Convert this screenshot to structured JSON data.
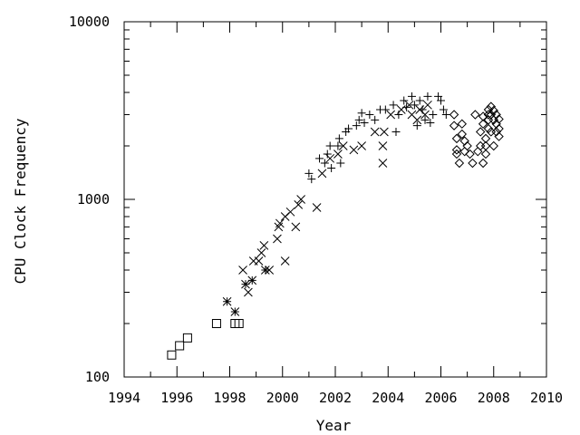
{
  "chart_data": {
    "type": "scatter",
    "title": "",
    "xlabel": "Year",
    "ylabel": "CPU Clock Frequency",
    "xlim": [
      1994,
      2010
    ],
    "ylim": [
      100,
      10000
    ],
    "y_scale": "log",
    "grid": false,
    "legend": "none",
    "x_ticks": [
      "1994",
      "1996",
      "1998",
      "2000",
      "2002",
      "2004",
      "2006",
      "2008",
      "2010"
    ],
    "y_ticks": [
      {
        "value": 100,
        "label": "100"
      },
      {
        "value": 1000,
        "label": "1000"
      },
      {
        "value": 10000,
        "label": "10000"
      }
    ],
    "series": [
      {
        "marker": "square",
        "points": [
          [
            1995.8,
            133
          ],
          [
            1996.1,
            150
          ],
          [
            1996.4,
            166
          ],
          [
            1997.5,
            200
          ],
          [
            1998.2,
            200
          ],
          [
            1998.35,
            200
          ]
        ]
      },
      {
        "marker": "star",
        "points": [
          [
            1997.9,
            266
          ],
          [
            1998.2,
            233
          ],
          [
            1998.6,
            333
          ],
          [
            1998.85,
            350
          ],
          [
            1999.35,
            400
          ]
        ]
      },
      {
        "marker": "x",
        "points": [
          [
            1998.5,
            400
          ],
          [
            1998.7,
            300
          ],
          [
            1998.9,
            450
          ],
          [
            1999.1,
            450
          ],
          [
            1999.2,
            500
          ],
          [
            1999.3,
            550
          ],
          [
            1999.5,
            400
          ],
          [
            1999.8,
            600
          ],
          [
            1999.85,
            700
          ],
          [
            1999.9,
            733
          ],
          [
            2000.1,
            800
          ],
          [
            2000.1,
            450
          ],
          [
            2000.3,
            850
          ],
          [
            2000.5,
            700
          ],
          [
            2000.6,
            933
          ],
          [
            2000.7,
            1000
          ],
          [
            2001.3,
            900
          ],
          [
            2001.5,
            1400
          ],
          [
            2001.8,
            1700
          ],
          [
            2002.1,
            1800
          ],
          [
            2002.3,
            2000
          ],
          [
            2002.7,
            1900
          ],
          [
            2003.0,
            2000
          ],
          [
            2003.5,
            2400
          ],
          [
            2003.8,
            2000
          ],
          [
            2003.8,
            1600
          ],
          [
            2003.85,
            2400
          ],
          [
            2004.1,
            3000
          ],
          [
            2004.5,
            3200
          ],
          [
            2004.8,
            3400
          ],
          [
            2004.9,
            3000
          ],
          [
            2005.1,
            2800
          ],
          [
            2005.2,
            3200
          ],
          [
            2005.4,
            3000
          ],
          [
            2005.5,
            3400
          ]
        ]
      },
      {
        "marker": "plus",
        "points": [
          [
            2001.0,
            1400
          ],
          [
            2001.1,
            1300
          ],
          [
            2001.4,
            1700
          ],
          [
            2001.6,
            1600
          ],
          [
            2001.7,
            1800
          ],
          [
            2001.8,
            2000
          ],
          [
            2001.85,
            1500
          ],
          [
            2002.1,
            2000
          ],
          [
            2002.15,
            2200
          ],
          [
            2002.2,
            1600
          ],
          [
            2002.4,
            2400
          ],
          [
            2002.5,
            2500
          ],
          [
            2002.8,
            2600
          ],
          [
            2002.9,
            2800
          ],
          [
            2003.0,
            3060
          ],
          [
            2003.1,
            2700
          ],
          [
            2003.3,
            3000
          ],
          [
            2003.5,
            2800
          ],
          [
            2003.7,
            3200
          ],
          [
            2003.9,
            3200
          ],
          [
            2004.2,
            3400
          ],
          [
            2004.3,
            2400
          ],
          [
            2004.4,
            3000
          ],
          [
            2004.6,
            3600
          ],
          [
            2004.7,
            3300
          ],
          [
            2004.9,
            3800
          ],
          [
            2005.0,
            3400
          ],
          [
            2005.1,
            2600
          ],
          [
            2005.2,
            3600
          ],
          [
            2005.3,
            3200
          ],
          [
            2005.4,
            2800
          ],
          [
            2005.5,
            3800
          ],
          [
            2005.6,
            2700
          ],
          [
            2005.7,
            3000
          ],
          [
            2005.9,
            3800
          ],
          [
            2006.0,
            3600
          ],
          [
            2006.1,
            3200
          ],
          [
            2006.2,
            3000
          ]
        ]
      },
      {
        "marker": "diamond",
        "points": [
          [
            2006.5,
            3000
          ],
          [
            2006.5,
            2600
          ],
          [
            2006.6,
            2200
          ],
          [
            2006.6,
            1900
          ],
          [
            2006.6,
            1800
          ],
          [
            2006.7,
            1600
          ],
          [
            2006.8,
            2660
          ],
          [
            2006.8,
            2330
          ],
          [
            2006.9,
            2130
          ],
          [
            2006.9,
            1860
          ],
          [
            2007.0,
            2000
          ],
          [
            2007.1,
            1800
          ],
          [
            2007.2,
            1600
          ],
          [
            2007.3,
            3000
          ],
          [
            2007.4,
            1860
          ],
          [
            2007.5,
            2400
          ],
          [
            2007.5,
            2000
          ],
          [
            2007.6,
            2930
          ],
          [
            2007.6,
            2660
          ],
          [
            2007.6,
            1600
          ],
          [
            2007.7,
            2200
          ],
          [
            2007.7,
            2000
          ],
          [
            2007.7,
            1800
          ],
          [
            2007.8,
            3200
          ],
          [
            2007.8,
            3000
          ],
          [
            2007.8,
            2800
          ],
          [
            2007.8,
            2500
          ],
          [
            2007.9,
            3330
          ],
          [
            2007.9,
            3000
          ],
          [
            2007.9,
            2400
          ],
          [
            2008.0,
            3160
          ],
          [
            2008.0,
            2800
          ],
          [
            2008.0,
            2000
          ],
          [
            2008.1,
            3000
          ],
          [
            2008.1,
            2660
          ],
          [
            2008.1,
            2400
          ],
          [
            2008.2,
            2260
          ],
          [
            2008.2,
            2500
          ],
          [
            2008.2,
            2830
          ]
        ]
      }
    ]
  }
}
